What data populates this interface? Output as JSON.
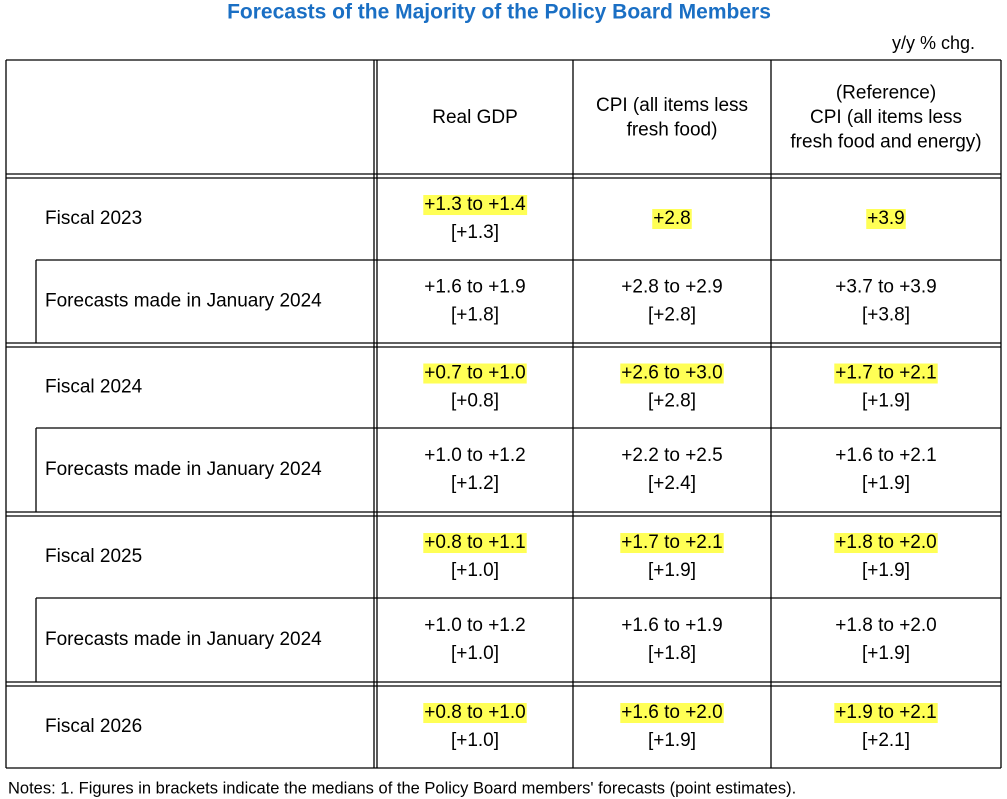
{
  "header": {
    "title": "Forecasts of the Majority of the Policy Board Members",
    "unit": "y/y % chg."
  },
  "table": {
    "columns": [
      [
        "Real GDP"
      ],
      [
        "CPI (all items less",
        "fresh food)"
      ],
      [
        "(Reference)",
        "CPI (all items less",
        "fresh food and energy)"
      ]
    ],
    "rows": [
      {
        "label": "Fiscal 2023",
        "cells": [
          [
            "+1.3 to +1.4",
            "[+1.3]"
          ],
          [
            "+2.8"
          ],
          [
            "+3.9"
          ]
        ]
      },
      {
        "label": "Forecasts made in January 2024",
        "cells": [
          [
            "+1.6 to +1.9",
            "[+1.8]"
          ],
          [
            "+2.8 to +2.9",
            "[+2.8]"
          ],
          [
            "+3.7 to +3.9",
            "[+3.8]"
          ]
        ]
      },
      {
        "label": "Fiscal 2024",
        "cells": [
          [
            "+0.7 to +1.0",
            "[+0.8]"
          ],
          [
            "+2.6 to +3.0",
            "[+2.8]"
          ],
          [
            "+1.7 to +2.1",
            "[+1.9]"
          ]
        ]
      },
      {
        "label": "Forecasts made in January 2024",
        "cells": [
          [
            "+1.0 to +1.2",
            "[+1.2]"
          ],
          [
            "+2.2 to +2.5",
            "[+2.4]"
          ],
          [
            "+1.6 to +2.1",
            "[+1.9]"
          ]
        ]
      },
      {
        "label": "Fiscal 2025",
        "cells": [
          [
            "+0.8 to +1.1",
            "[+1.0]"
          ],
          [
            "+1.7 to +2.1",
            "[+1.9]"
          ],
          [
            "+1.8 to +2.0",
            "[+1.9]"
          ]
        ]
      },
      {
        "label": "Forecasts made in January 2024",
        "cells": [
          [
            "+1.0 to +1.2",
            "[+1.0]"
          ],
          [
            "+1.6 to +1.9",
            "[+1.8]"
          ],
          [
            "+1.8 to +2.0",
            "[+1.9]"
          ]
        ]
      },
      {
        "label": "Fiscal 2026",
        "cells": [
          [
            "+0.8 to +1.0",
            "[+1.0]"
          ],
          [
            "+1.6 to +2.0",
            "[+1.9]"
          ],
          [
            "+1.9 to +2.1",
            "[+2.1]"
          ]
        ]
      }
    ]
  },
  "notes": "Notes: 1. Figures in brackets indicate the medians of the Policy Board members' forecasts (point estimates)."
}
